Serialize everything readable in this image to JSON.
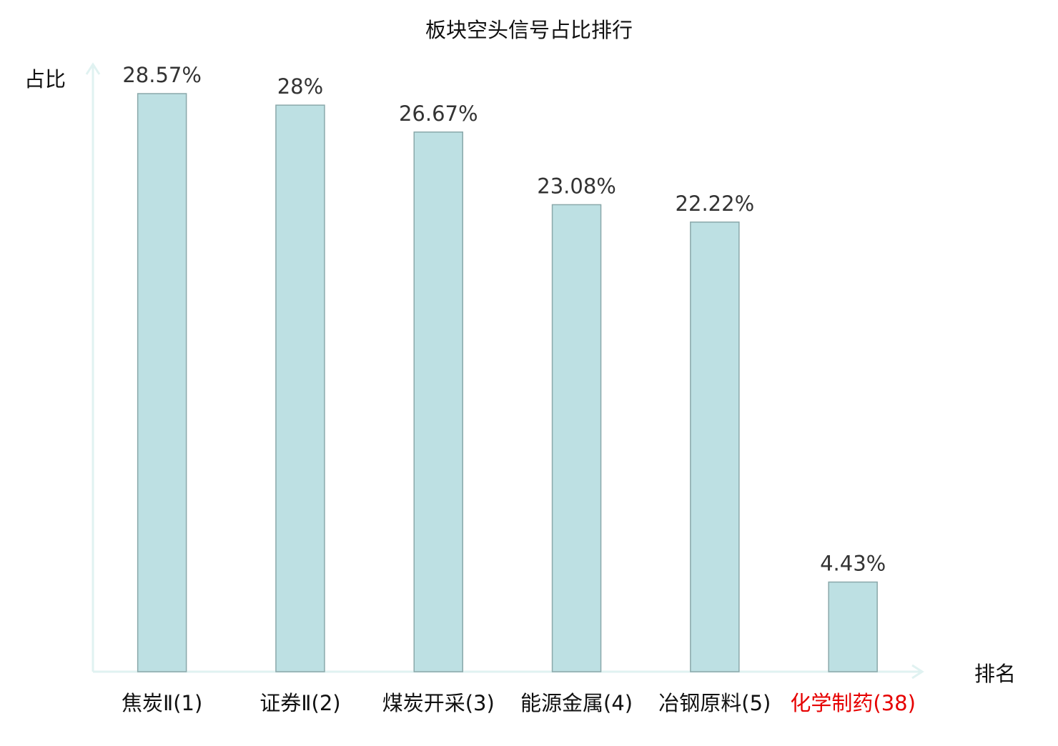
{
  "chart_data": {
    "type": "bar",
    "title": "板块空头信号占比排行",
    "ylabel": "占比",
    "xlabel": "排名",
    "categories": [
      "焦炭Ⅱ(1)",
      "证券Ⅱ(2)",
      "煤炭开采(3)",
      "能源金属(4)",
      "冶钢原料(5)",
      "化学制药(38)"
    ],
    "values": [
      28.57,
      28,
      26.67,
      23.08,
      22.22,
      4.43
    ],
    "value_labels": [
      "28.57%",
      "28%",
      "26.67%",
      "23.08%",
      "22.22%",
      "4.43%"
    ],
    "highlight_category": "化学制药(38)",
    "ylim": [
      0,
      30
    ],
    "grid": false,
    "legend": "none"
  },
  "colors": {
    "bar_fill": "#bde0e3",
    "bar_stroke": "#8aa8aa",
    "axis": "#e0f2f1",
    "label_text": "#333333",
    "highlight_text": "#e60000",
    "title_text": "#111111"
  }
}
